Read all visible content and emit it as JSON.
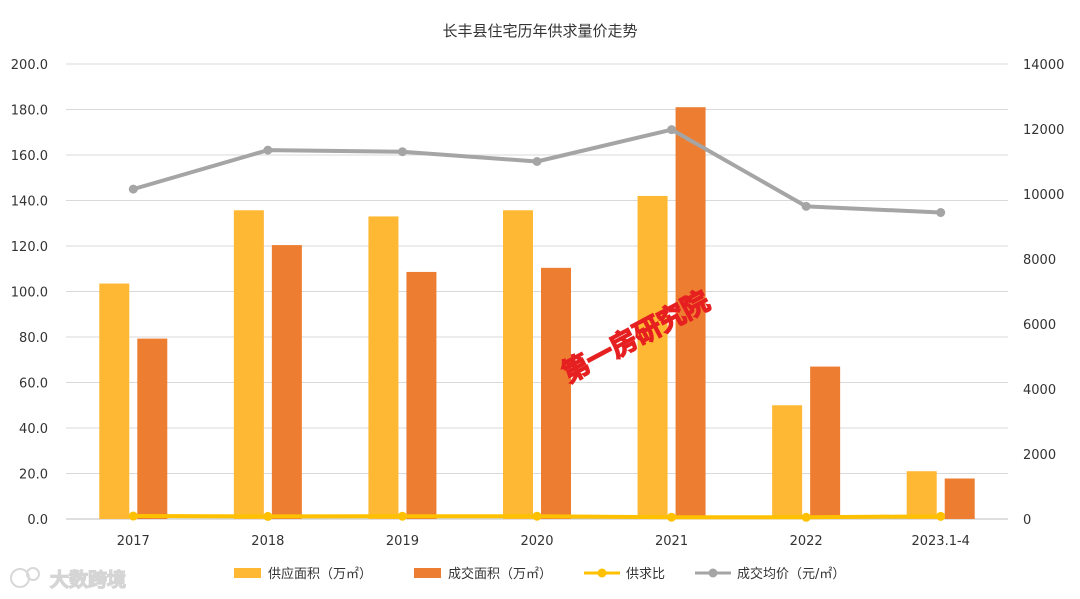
{
  "chart_data": {
    "type": "bar",
    "title": "长丰县住宅历年供求量价走势",
    "categories": [
      "2017",
      "2018",
      "2019",
      "2020",
      "2021",
      "2022",
      "2023.1-4"
    ],
    "series": [
      {
        "name": "供应面积（万㎡）",
        "type": "bar",
        "axis": "left",
        "color": "#FFB833",
        "values": [
          103.5,
          135.7,
          133.0,
          135.7,
          142.0,
          50.0,
          21.0
        ]
      },
      {
        "name": "成交面积（万㎡）",
        "type": "bar",
        "axis": "left",
        "color": "#ED7D31",
        "values": [
          79.3,
          120.4,
          108.6,
          110.4,
          181.0,
          67.0,
          17.8
        ]
      },
      {
        "name": "供求比",
        "type": "line",
        "axis": "left",
        "color": "#FFC000",
        "values": [
          1.31,
          1.13,
          1.22,
          1.23,
          0.78,
          0.75,
          1.18
        ]
      },
      {
        "name": "成交均价（元/㎡）",
        "type": "line",
        "axis": "right",
        "color": "#A5A5A5",
        "values": [
          10150,
          11350,
          11300,
          11000,
          11980,
          9620,
          9430
        ]
      }
    ],
    "y_left": {
      "ylim": [
        0,
        200
      ],
      "ticks": [
        "0.0",
        "20.0",
        "40.0",
        "60.0",
        "80.0",
        "100.0",
        "120.0",
        "140.0",
        "160.0",
        "180.0",
        "200.0"
      ]
    },
    "y_right": {
      "ylim": [
        0,
        14000
      ],
      "ticks": [
        "0",
        "2000",
        "4000",
        "6000",
        "8000",
        "10000",
        "12000",
        "14000"
      ]
    },
    "grid": true,
    "legend_position": "bottom",
    "watermark": "第一房研究院",
    "source_logo": "大数跨境"
  }
}
